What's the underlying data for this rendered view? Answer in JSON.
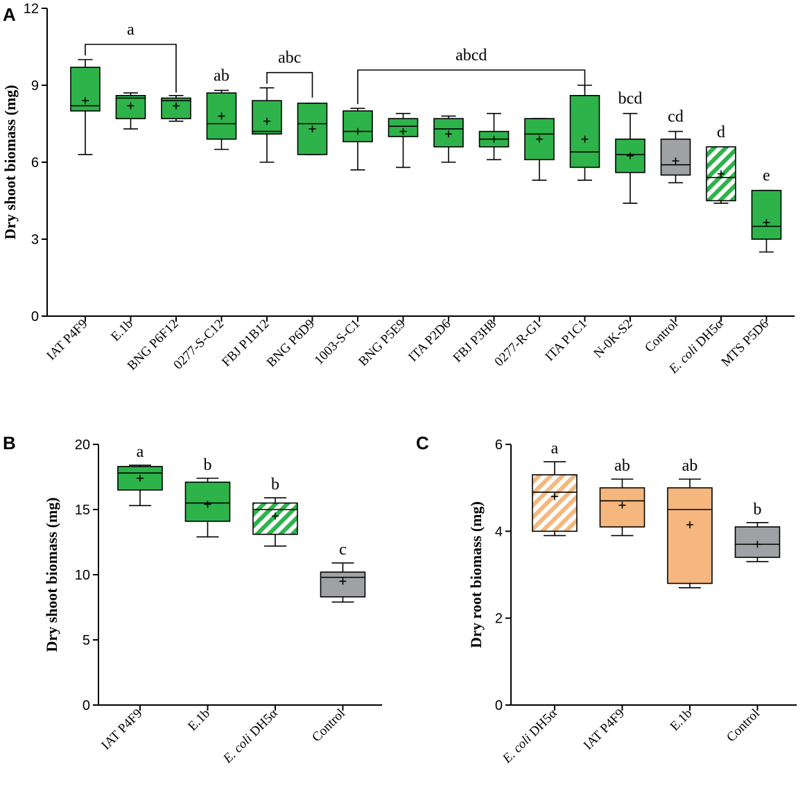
{
  "colors": {
    "green": "#2db34a",
    "gray": "#9fa1a4",
    "orange": "#f5b77d",
    "hatch_bg": "#ffffff"
  },
  "chart_data": [
    {
      "panel": "A",
      "type": "boxplot",
      "ylabel": "Dry shoot biomass (mg)",
      "ylim": [
        0,
        12
      ],
      "yticks": [
        0,
        3,
        6,
        9,
        12
      ],
      "categories": [
        {
          "label": "IAT P4F9",
          "min": 6.3,
          "q1": 8.0,
          "median": 8.2,
          "q3": 9.7,
          "max": 10.0,
          "mean": 8.4,
          "color": "green",
          "hatched": false
        },
        {
          "label": "E.1b",
          "min": 7.3,
          "q1": 7.7,
          "median": 8.5,
          "q3": 8.6,
          "max": 8.7,
          "mean": 8.2,
          "color": "green",
          "hatched": false
        },
        {
          "label": "BNG P6F12",
          "min": 7.6,
          "q1": 7.7,
          "median": 8.4,
          "q3": 8.5,
          "max": 8.6,
          "mean": 8.2,
          "color": "green",
          "hatched": false
        },
        {
          "label": "0277-S-C12",
          "min": 6.5,
          "q1": 6.9,
          "median": 7.5,
          "q3": 8.7,
          "max": 8.8,
          "mean": 7.8,
          "color": "green",
          "hatched": false
        },
        {
          "label": "FBJ P1B12",
          "min": 6.0,
          "q1": 7.1,
          "median": 7.2,
          "q3": 8.4,
          "max": 8.9,
          "mean": 7.6,
          "color": "green",
          "hatched": false
        },
        {
          "label": "BNG P6D9",
          "min": 6.3,
          "q1": 6.3,
          "median": 7.5,
          "q3": 8.3,
          "max": 8.3,
          "mean": 7.3,
          "color": "green",
          "hatched": false
        },
        {
          "label": "1003-S-C1",
          "min": 5.7,
          "q1": 6.8,
          "median": 7.2,
          "q3": 8.0,
          "max": 8.1,
          "mean": 7.2,
          "color": "green",
          "hatched": false
        },
        {
          "label": "BNG P5E9",
          "min": 5.8,
          "q1": 7.0,
          "median": 7.4,
          "q3": 7.7,
          "max": 7.9,
          "mean": 7.2,
          "color": "green",
          "hatched": false
        },
        {
          "label": "ITA P2D6",
          "min": 6.0,
          "q1": 6.6,
          "median": 7.3,
          "q3": 7.7,
          "max": 7.8,
          "mean": 7.1,
          "color": "green",
          "hatched": false
        },
        {
          "label": "FBJ P3H8",
          "min": 6.1,
          "q1": 6.6,
          "median": 6.9,
          "q3": 7.2,
          "max": 7.9,
          "mean": 6.9,
          "color": "green",
          "hatched": false
        },
        {
          "label": "0277-R-G1",
          "min": 5.3,
          "q1": 6.1,
          "median": 7.1,
          "q3": 7.7,
          "max": 7.7,
          "mean": 6.9,
          "color": "green",
          "hatched": false
        },
        {
          "label": "ITA P1C1",
          "min": 5.3,
          "q1": 5.8,
          "median": 6.4,
          "q3": 8.6,
          "max": 9.0,
          "mean": 6.9,
          "color": "green",
          "hatched": false
        },
        {
          "label": "N-0K-S2",
          "min": 4.4,
          "q1": 5.6,
          "median": 6.3,
          "q3": 6.9,
          "max": 7.9,
          "mean": 6.25,
          "color": "green",
          "hatched": false
        },
        {
          "label": "Control",
          "min": 5.2,
          "q1": 5.5,
          "median": 5.9,
          "q3": 6.9,
          "max": 7.2,
          "mean": 6.05,
          "color": "gray",
          "hatched": false
        },
        {
          "label_prefix": "E. coli",
          "label_suffix": " DH5α",
          "min": 4.4,
          "q1": 4.5,
          "median": 5.4,
          "q3": 6.6,
          "max": 6.6,
          "mean": 5.55,
          "color": "green",
          "hatched": true
        },
        {
          "label": "MTS P5D6",
          "min": 2.5,
          "q1": 3.0,
          "median": 3.5,
          "q3": 4.9,
          "max": 4.9,
          "mean": 3.65,
          "color": "green",
          "hatched": false
        }
      ],
      "annotations": [
        {
          "text": "a",
          "from": 0,
          "to": 2,
          "bracket": true
        },
        {
          "text": "ab",
          "at": 3,
          "bracket": false
        },
        {
          "text": "abc",
          "from": 4,
          "to": 5,
          "bracket": true
        },
        {
          "text": "abcd",
          "from": 6,
          "to": 11,
          "bracket": true
        },
        {
          "text": "bcd",
          "at": 12,
          "bracket": false
        },
        {
          "text": "cd",
          "at": 13,
          "bracket": false
        },
        {
          "text": "d",
          "at": 14,
          "bracket": false
        },
        {
          "text": "e",
          "at": 15,
          "bracket": false
        }
      ]
    },
    {
      "panel": "B",
      "type": "boxplot",
      "ylabel": "Dry shoot biomass (mg)",
      "ylim": [
        0,
        20
      ],
      "yticks": [
        0,
        5,
        10,
        15,
        20
      ],
      "categories": [
        {
          "label": "IAT P4F9",
          "min": 15.3,
          "q1": 16.5,
          "median": 17.8,
          "q3": 18.3,
          "max": 18.4,
          "mean": 17.4,
          "color": "green",
          "hatched": false,
          "sig": "a"
        },
        {
          "label": "E.1b",
          "min": 12.9,
          "q1": 14.1,
          "median": 15.5,
          "q3": 17.1,
          "max": 17.4,
          "mean": 15.4,
          "color": "green",
          "hatched": false,
          "sig": "b"
        },
        {
          "label_prefix": "E. coli",
          "label_suffix": " DH5α",
          "min": 12.2,
          "q1": 13.1,
          "median": 15.0,
          "q3": 15.5,
          "max": 15.9,
          "mean": 14.5,
          "color": "green",
          "hatched": true,
          "sig": "b"
        },
        {
          "label": "Control",
          "min": 7.9,
          "q1": 8.3,
          "median": 9.8,
          "q3": 10.2,
          "max": 10.9,
          "mean": 9.5,
          "color": "gray",
          "hatched": false,
          "sig": "c"
        }
      ]
    },
    {
      "panel": "C",
      "type": "boxplot",
      "ylabel": "Dry root biomass (mg)",
      "ylim": [
        0,
        6
      ],
      "yticks": [
        0,
        2,
        4,
        6
      ],
      "categories": [
        {
          "label_prefix": "E. coli",
          "label_suffix": " DH5α",
          "min": 3.9,
          "q1": 4.0,
          "median": 4.9,
          "q3": 5.3,
          "max": 5.6,
          "mean": 4.8,
          "color": "orange",
          "hatched": true,
          "sig": "a"
        },
        {
          "label": "IAT P4F9",
          "min": 3.9,
          "q1": 4.1,
          "median": 4.7,
          "q3": 5.0,
          "max": 5.2,
          "mean": 4.6,
          "color": "orange",
          "hatched": false,
          "sig": "ab"
        },
        {
          "label": "E.1b",
          "min": 2.7,
          "q1": 2.8,
          "median": 4.5,
          "q3": 5.0,
          "max": 5.2,
          "mean": 4.15,
          "color": "orange",
          "hatched": false,
          "sig": "ab"
        },
        {
          "label": "Control",
          "min": 3.3,
          "q1": 3.4,
          "median": 3.7,
          "q3": 4.1,
          "max": 4.2,
          "mean": 3.7,
          "color": "gray",
          "hatched": false,
          "sig": "b"
        }
      ]
    }
  ]
}
